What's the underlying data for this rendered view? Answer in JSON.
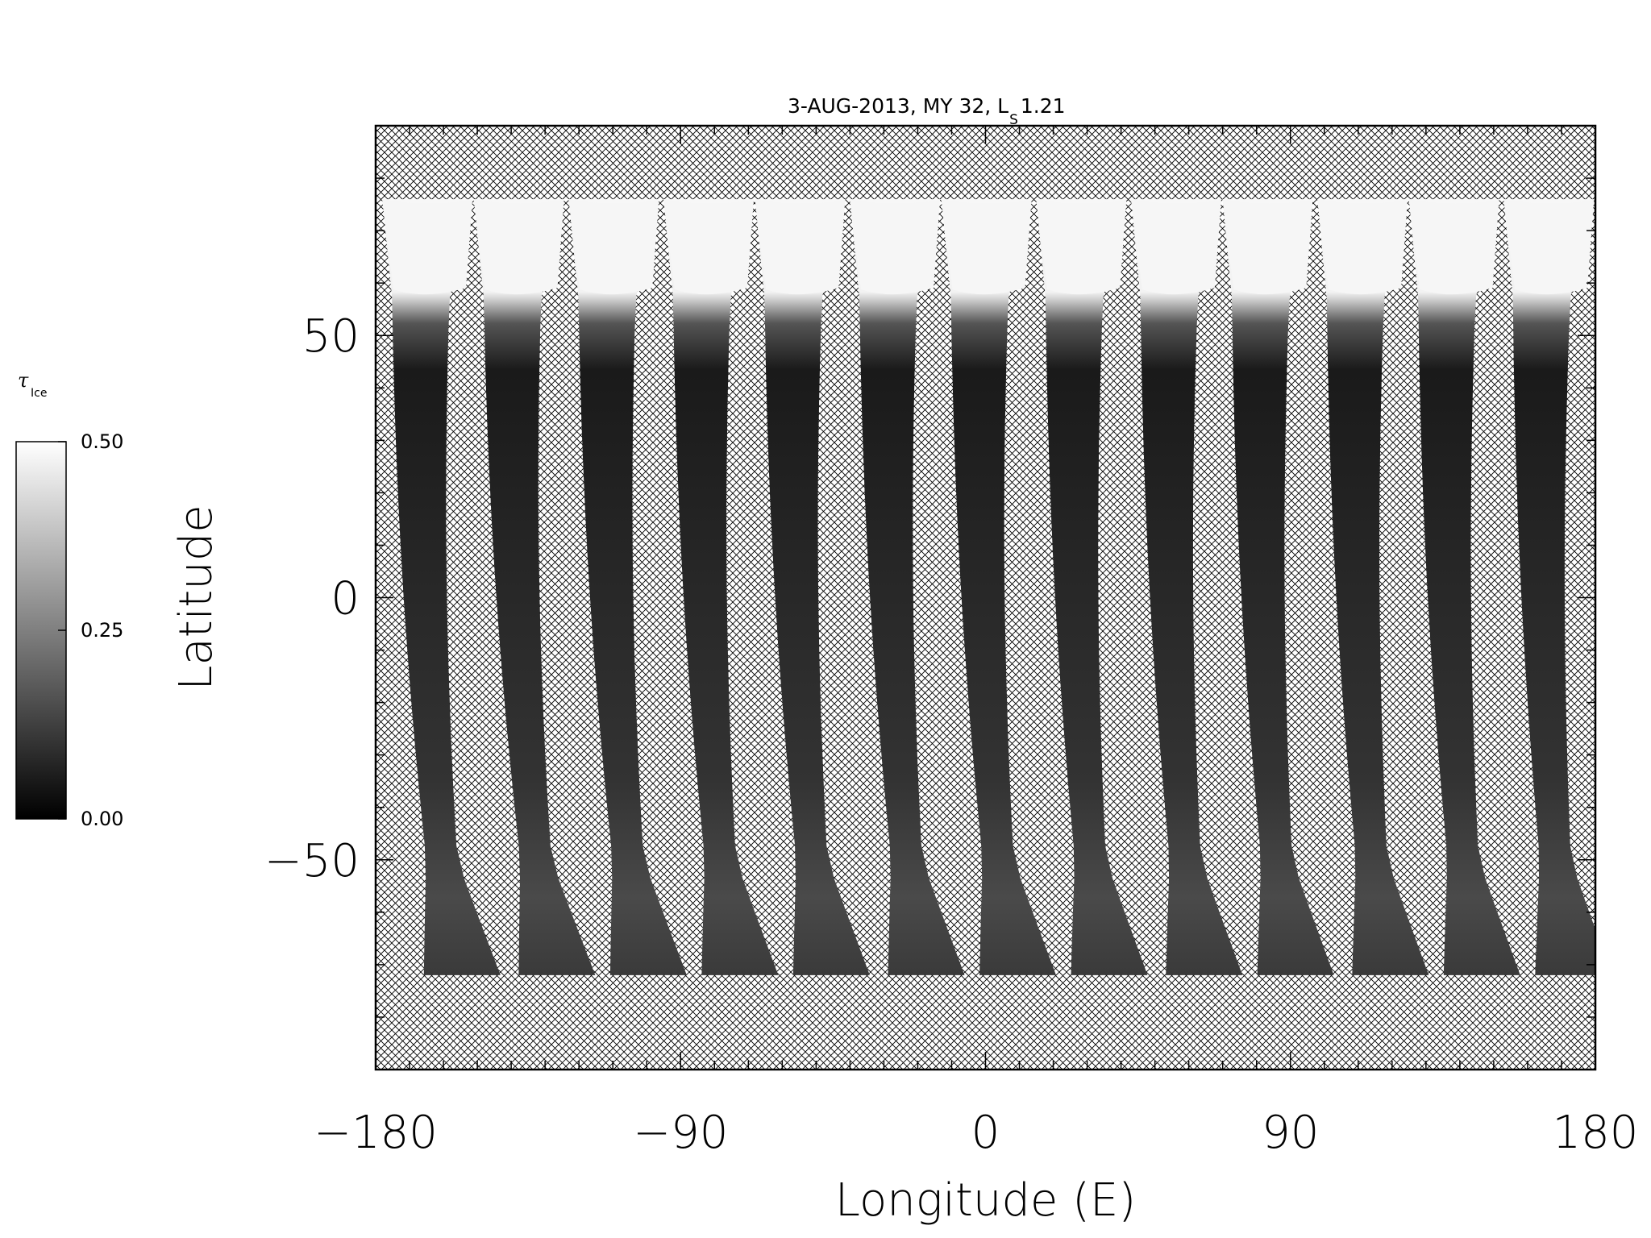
{
  "chart_data": {
    "type": "heatmap",
    "title_main": "3-AUG-2013, MY 32,  L",
    "title_sub": "S",
    "title_tail": " 1.21",
    "xlabel": "Longitude (E)",
    "ylabel": "Latitude",
    "xlim": [
      -180,
      180
    ],
    "ylim": [
      -90,
      90
    ],
    "x_ticks": [
      -180,
      -90,
      0,
      90,
      180
    ],
    "x_tick_labels": [
      "−180",
      "−90",
      "0",
      "90",
      "180"
    ],
    "y_ticks": [
      50,
      0,
      -50
    ],
    "y_tick_labels": [
      "50",
      "0",
      "−50"
    ],
    "colorbar": {
      "label_symbol": "τ",
      "label_sub": "Ice",
      "range": [
        0.0,
        0.5
      ],
      "ticks": [
        0.5,
        0.25,
        0.0
      ],
      "tick_labels": [
        "0.50",
        "0.25",
        "0.00"
      ],
      "colormap": "grayscale"
    },
    "no_data_fill": "crosshatch",
    "data_coverage_lat": [
      -72,
      76
    ],
    "swaths": [
      {
        "lon_north": -170,
        "lon_south": -159
      },
      {
        "lon_north": -143,
        "lon_south": -131
      },
      {
        "lon_north": -115,
        "lon_south": -104
      },
      {
        "lon_north": -87,
        "lon_south": -77
      },
      {
        "lon_north": -60,
        "lon_south": -50
      },
      {
        "lon_north": -32,
        "lon_south": -22
      },
      {
        "lon_north": -5,
        "lon_south": 5
      },
      {
        "lon_north": 23,
        "lon_south": 32
      },
      {
        "lon_north": 51,
        "lon_south": 60
      },
      {
        "lon_north": 78,
        "lon_south": 87
      },
      {
        "lon_north": 106,
        "lon_south": 115
      },
      {
        "lon_north": 133,
        "lon_south": 142
      },
      {
        "lon_north": 161,
        "lon_south": 169
      }
    ]
  },
  "colors": {
    "ice_high": "#f8f8f8",
    "ice_low": "#111111",
    "hatch": "#000000"
  }
}
